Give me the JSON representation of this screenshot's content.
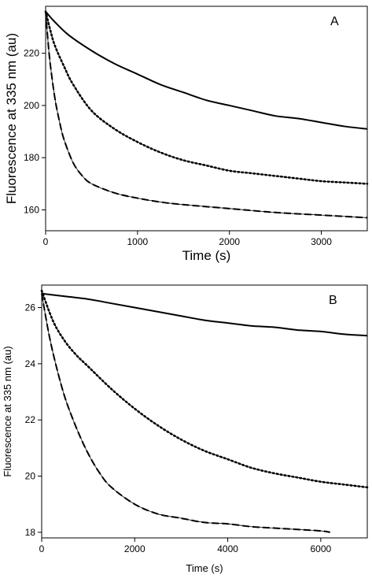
{
  "chart_data": [
    {
      "type": "line",
      "panel_label": "A",
      "xlabel": "Time (s)",
      "ylabel": "Fluorescence at 335 nm (au)",
      "xlim": [
        0,
        3500
      ],
      "ylim": [
        152,
        238
      ],
      "xticks": [
        0,
        1000,
        2000,
        3000
      ],
      "yticks": [
        160,
        180,
        200,
        220
      ],
      "grid": false,
      "legend": "none",
      "series": [
        {
          "style": "solid",
          "x": [
            0,
            100,
            250,
            500,
            750,
            1000,
            1250,
            1500,
            1750,
            2000,
            2250,
            2500,
            2750,
            3000,
            3250,
            3500
          ],
          "y": [
            236,
            232,
            227,
            221,
            216,
            212,
            208,
            205,
            202,
            200,
            198,
            196,
            195,
            193.5,
            192,
            191
          ]
        },
        {
          "style": "dotted",
          "x": [
            0,
            50,
            100,
            200,
            300,
            500,
            750,
            1000,
            1250,
            1500,
            1750,
            2000,
            2250,
            2500,
            2750,
            3000,
            3250,
            3500
          ],
          "y": [
            236,
            229,
            223,
            215,
            208,
            198,
            191,
            186,
            182,
            179,
            177,
            175,
            174,
            173,
            172,
            171,
            170.5,
            170
          ]
        },
        {
          "style": "dashed",
          "x": [
            0,
            25,
            50,
            100,
            150,
            200,
            300,
            400,
            500,
            750,
            1000,
            1250,
            1500,
            2000,
            2500,
            3000,
            3500
          ],
          "y": [
            236,
            225,
            216,
            203,
            194,
            187,
            178,
            173,
            170,
            166.5,
            164.5,
            163,
            162,
            160.5,
            159,
            158,
            157
          ]
        }
      ]
    },
    {
      "type": "line",
      "panel_label": "B",
      "xlabel": "Time (s)",
      "ylabel": "Fluorescence at 335 nm (au)",
      "xlim": [
        0,
        7000
      ],
      "ylim": [
        17.8,
        26.8
      ],
      "xticks": [
        0,
        2000,
        4000,
        6000
      ],
      "yticks": [
        18,
        20,
        22,
        24,
        26
      ],
      "grid": false,
      "legend": "none",
      "series": [
        {
          "style": "solid",
          "x": [
            0,
            500,
            1000,
            1500,
            2000,
            2500,
            3000,
            3500,
            4000,
            4500,
            5000,
            5500,
            6000,
            6500,
            7000
          ],
          "y": [
            26.5,
            26.4,
            26.3,
            26.15,
            26.0,
            25.85,
            25.7,
            25.55,
            25.45,
            25.35,
            25.3,
            25.2,
            25.15,
            25.05,
            25.0
          ]
        },
        {
          "style": "dotted",
          "x": [
            0,
            250,
            500,
            750,
            1000,
            1500,
            2000,
            2500,
            3000,
            3500,
            4000,
            4500,
            5000,
            5500,
            6000,
            6500,
            7000
          ],
          "y": [
            26.6,
            25.5,
            24.8,
            24.3,
            23.9,
            23.1,
            22.4,
            21.8,
            21.3,
            20.9,
            20.6,
            20.3,
            20.1,
            19.95,
            19.8,
            19.7,
            19.6
          ]
        },
        {
          "style": "dashed",
          "x": [
            0,
            150,
            300,
            500,
            750,
            1000,
            1250,
            1500,
            2000,
            2500,
            3000,
            3500,
            4000,
            4500,
            5000,
            5500,
            6000,
            6200
          ],
          "y": [
            26.5,
            25.1,
            24.0,
            22.8,
            21.7,
            20.8,
            20.1,
            19.6,
            19.0,
            18.65,
            18.5,
            18.35,
            18.3,
            18.2,
            18.15,
            18.1,
            18.05,
            18.0
          ]
        }
      ]
    }
  ]
}
